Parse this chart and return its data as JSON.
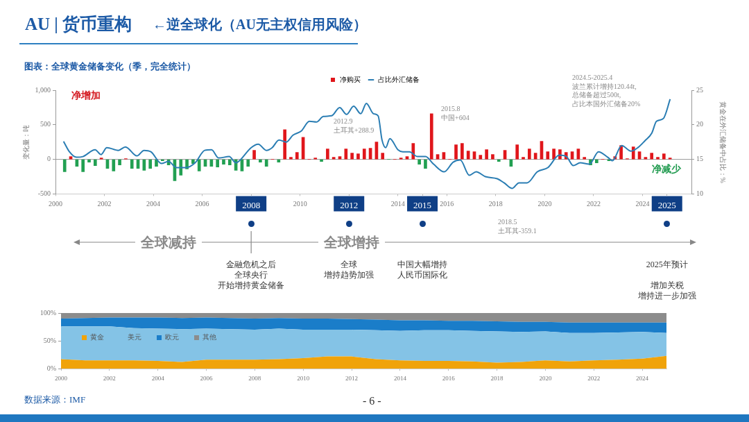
{
  "chart_data": [
    {
      "type": "bar",
      "title": "AU | 货币重构",
      "subtitle": "←逆全球化（AU无主权信用风险）",
      "ylabel": "变化量：吨",
      "y2label": "黄金在外汇储备中占比：%",
      "annotations": [
        "图表：全球黄金储备变化（季，完全统计）",
        "净增加",
        "净减少",
        "2012.9\n土耳其+288.9",
        "2015.8\n中国+604",
        "2024.5-2025.4\n波兰累计增持120.44t,\n总储备超过500t,\n占比本国外汇储备20%",
        "2018.5\n土耳其-359.1",
        "全球减持",
        "全球增持",
        "金融危机之后",
        "全球央行",
        "开始增持黄金储备",
        "全球",
        "增持趋势加强",
        "中国大幅增持",
        "人民币国际化",
        "2025年预计",
        "增加关税",
        "增持进一步加强"
      ],
      "x": [
        2000.375,
        2000.625,
        2000.875,
        2001.125,
        2001.375,
        2001.625,
        2001.875,
        2002.125,
        2002.375,
        2002.625,
        2002.875,
        2003.125,
        2003.375,
        2003.625,
        2003.875,
        2004.125,
        2004.375,
        2004.625,
        2004.875,
        2005.125,
        2005.375,
        2005.625,
        2005.875,
        2006.125,
        2006.375,
        2006.625,
        2006.875,
        2007.125,
        2007.375,
        2007.625,
        2007.875,
        2008.125,
        2008.375,
        2008.625,
        2008.875,
        2009.125,
        2009.375,
        2009.625,
        2009.875,
        2010.125,
        2010.375,
        2010.625,
        2010.875,
        2011.125,
        2011.375,
        2011.625,
        2011.875,
        2012.125,
        2012.375,
        2012.625,
        2012.875,
        2013.125,
        2013.375,
        2013.625,
        2013.875,
        2014.125,
        2014.375,
        2014.625,
        2014.875,
        2015.125,
        2015.375,
        2015.625,
        2015.875,
        2016.125,
        2016.375,
        2016.625,
        2016.875,
        2017.125,
        2017.375,
        2017.625,
        2017.875,
        2018.125,
        2018.375,
        2018.625,
        2018.875,
        2019.125,
        2019.375,
        2019.625,
        2019.875,
        2020.125,
        2020.375,
        2020.625,
        2020.875,
        2021.125,
        2021.375,
        2021.625,
        2021.875,
        2022.125,
        2022.375,
        2022.625,
        2022.875,
        2023.125,
        2023.375,
        2023.625,
        2023.875,
        2024.125,
        2024.375,
        2024.625,
        2024.875,
        2025.125
      ],
      "series": [
        {
          "name": "净购买",
          "type": "bar",
          "color": "#e0161b",
          "values": [
            -180,
            40,
            -100,
            -180,
            -40,
            -90,
            20,
            -130,
            -170,
            -80,
            10,
            -130,
            -130,
            -160,
            -130,
            -100,
            -20,
            -80,
            -310,
            -230,
            -140,
            -60,
            -170,
            -100,
            -100,
            -110,
            -70,
            -80,
            -160,
            -170,
            -100,
            130,
            -40,
            -100,
            0,
            -40,
            430,
            30,
            100,
            320,
            0,
            20,
            -30,
            150,
            30,
            40,
            150,
            90,
            80,
            150,
            160,
            250,
            90,
            0,
            0,
            20,
            40,
            230,
            -70,
            -130,
            660,
            70,
            100,
            0,
            210,
            230,
            120,
            110,
            60,
            140,
            70,
            -30,
            130,
            -100,
            210,
            30,
            150,
            90,
            260,
            110,
            150,
            140,
            100,
            110,
            150,
            30,
            -80,
            -50,
            0,
            -20,
            40,
            200,
            10,
            180,
            110,
            30,
            90,
            30,
            80,
            20
          ],
          "colors": [
            "#22a052",
            "#e0161b",
            "#22a052",
            "#22a052",
            "#22a052",
            "#22a052",
            "#e0161b",
            "#22a052",
            "#22a052",
            "#22a052",
            "#e0161b",
            "#22a052",
            "#22a052",
            "#22a052",
            "#22a052",
            "#22a052",
            "#22a052",
            "#22a052",
            "#22a052",
            "#22a052",
            "#22a052",
            "#22a052",
            "#22a052",
            "#22a052",
            "#22a052",
            "#22a052",
            "#22a052",
            "#22a052",
            "#22a052",
            "#22a052",
            "#22a052",
            "#e0161b",
            "#22a052",
            "#22a052",
            "#e0161b",
            "#22a052",
            "#e0161b",
            "#e0161b",
            "#e0161b",
            "#e0161b",
            "#e0161b",
            "#e0161b",
            "#22a052",
            "#e0161b",
            "#e0161b",
            "#e0161b",
            "#e0161b",
            "#e0161b",
            "#e0161b",
            "#e0161b",
            "#e0161b",
            "#e0161b",
            "#e0161b",
            "#22a052",
            "#e0161b",
            "#e0161b",
            "#e0161b",
            "#e0161b",
            "#22a052",
            "#22a052",
            "#e0161b",
            "#e0161b",
            "#e0161b",
            "#e0161b",
            "#e0161b",
            "#e0161b",
            "#e0161b",
            "#e0161b",
            "#e0161b",
            "#e0161b",
            "#e0161b",
            "#22a052",
            "#e0161b",
            "#22a052",
            "#e0161b",
            "#e0161b",
            "#e0161b",
            "#e0161b",
            "#e0161b",
            "#e0161b",
            "#e0161b",
            "#e0161b",
            "#e0161b",
            "#e0161b",
            "#e0161b",
            "#e0161b",
            "#22a052",
            "#22a052",
            "#e0161b",
            "#22a052",
            "#e0161b",
            "#e0161b",
            "#e0161b",
            "#e0161b",
            "#e0161b",
            "#e0161b",
            "#e0161b",
            "#e0161b",
            "#e0161b",
            "#e0161b"
          ]
        },
        {
          "name": "占比外汇储备",
          "type": "line",
          "axis": "y2",
          "color": "#2a7db3",
          "x": [
            2000.33,
            2000.57,
            2000.86,
            2001.12,
            2001.62,
            2001.86,
            2002.1,
            2002.57,
            2002.86,
            2003.33,
            2003.62,
            2003.9,
            2004.33,
            2004.62,
            2004.95,
            2005.33,
            2005.71,
            2006.1,
            2006.38,
            2006.67,
            2007.1,
            2007.38,
            2007.52,
            2008.0,
            2008.29,
            2008.62,
            2008.86,
            2009.14,
            2009.43,
            2009.71,
            2010.05,
            2010.38,
            2010.67,
            2010.95,
            2011.29,
            2011.62,
            2011.9,
            2012.19,
            2012.48,
            2012.71,
            2013.0,
            2013.19,
            2013.35,
            2013.5,
            2013.67,
            2014.0,
            2014.2,
            2014.47,
            2014.8,
            2015.13,
            2015.46,
            2015.89,
            2016.26,
            2016.55,
            2016.92,
            2017.2,
            2017.58,
            2018.06,
            2018.34,
            2018.67,
            2018.95,
            2019.28,
            2019.7,
            2020.13,
            2020.6,
            2020.89,
            2021.17,
            2021.45,
            2021.83,
            2022.2,
            2022.58,
            2022.77,
            2023.15,
            2023.53,
            2023.81,
            2024.1,
            2024.38,
            2024.57,
            2024.85,
            2025.13
          ],
          "values": [
            17.6,
            16.1,
            15.3,
            15.4,
            16.4,
            15.7,
            16.7,
            16.3,
            16.8,
            15.5,
            16.3,
            16.1,
            14.4,
            14.7,
            13.8,
            13.8,
            14.5,
            16.3,
            16.4,
            15.2,
            15.4,
            14.5,
            14.8,
            16.7,
            17.2,
            16.3,
            16.7,
            17.8,
            17.5,
            18.5,
            19.1,
            20.5,
            20.4,
            21.2,
            21.3,
            22.5,
            21.5,
            22.7,
            21.6,
            23.1,
            21.6,
            21.3,
            17.8,
            16.7,
            18.0,
            16.4,
            16.1,
            16.1,
            15.4,
            15.4,
            14.3,
            13.2,
            14.6,
            14.9,
            12.7,
            13.2,
            12.5,
            12.2,
            11.6,
            10.8,
            11.6,
            11.6,
            13.2,
            13.8,
            15.6,
            15.4,
            14.1,
            14.5,
            14.3,
            16.1,
            15.3,
            14.8,
            17.0,
            16.2,
            16.7,
            17.7,
            18.8,
            20.5,
            20.9,
            23.7
          ]
        }
      ],
      "xlim": [
        2000,
        2026
      ],
      "xticks": [
        2000,
        2002,
        2004,
        2006,
        2008,
        2010,
        2012,
        2014,
        2015,
        2016,
        2018,
        2020,
        2022,
        2024,
        2025
      ],
      "ylim": [
        -500,
        1000
      ],
      "yticks": [
        -500,
        0,
        500,
        {
          "value": 1000,
          "label": "1,000"
        }
      ],
      "y2lim": [
        10,
        25
      ],
      "y2ticks": [
        10,
        15,
        20,
        25
      ],
      "legend": "top"
    },
    {
      "type": "area",
      "stacked": true,
      "legend": "left",
      "x": [
        2000,
        2001,
        2002,
        2003,
        2004,
        2005,
        2006,
        2007,
        2008,
        2009,
        2010,
        2011,
        2012,
        2013,
        2014,
        2015,
        2016,
        2017,
        2018,
        2019,
        2020,
        2021,
        2022,
        2023,
        2024,
        2025
      ],
      "series": [
        {
          "name": "黄金",
          "color": "#f0a30a",
          "values": [
            17,
            15,
            15,
            15,
            14,
            12,
            16,
            16,
            16,
            17,
            19,
            22,
            22,
            17,
            15,
            14,
            14,
            13,
            11,
            12,
            15,
            13,
            15,
            16,
            18,
            23
          ]
        },
        {
          "name": "美元",
          "color": "#84c3e6",
          "values": [
            59,
            61,
            61,
            58,
            58,
            59,
            56,
            55,
            54,
            55,
            51,
            48,
            48,
            52,
            53,
            55,
            55,
            55,
            56,
            54,
            52,
            51,
            49,
            49,
            48,
            41
          ]
        },
        {
          "name": "欧元",
          "color": "#1a7dc9",
          "values": [
            14,
            15,
            16,
            19,
            20,
            20,
            20,
            20,
            20,
            19,
            20,
            20,
            19,
            19,
            19,
            18,
            17,
            18,
            18,
            18,
            17,
            19,
            19,
            18,
            17,
            19
          ]
        },
        {
          "name": "其他",
          "color": "#8c8c8c",
          "values": [
            10,
            9,
            8,
            8,
            8,
            9,
            8,
            9,
            10,
            9,
            10,
            10,
            11,
            12,
            13,
            13,
            14,
            14,
            15,
            16,
            16,
            17,
            17,
            17,
            17,
            17
          ]
        }
      ],
      "xlim": [
        2000,
        2025
      ],
      "xticks": [
        2000,
        2002,
        2004,
        2006,
        2008,
        2010,
        2012,
        2014,
        2016,
        2018,
        2020,
        2022,
        2024
      ],
      "ylim": [
        0,
        100
      ],
      "yticks": [
        {
          "value": 0,
          "label": "0%"
        },
        {
          "value": 50,
          "label": "50%"
        },
        {
          "value": 100,
          "label": "100%"
        }
      ],
      "annotations": [
        "数据来源：IMF",
        "- 6 -"
      ]
    }
  ]
}
